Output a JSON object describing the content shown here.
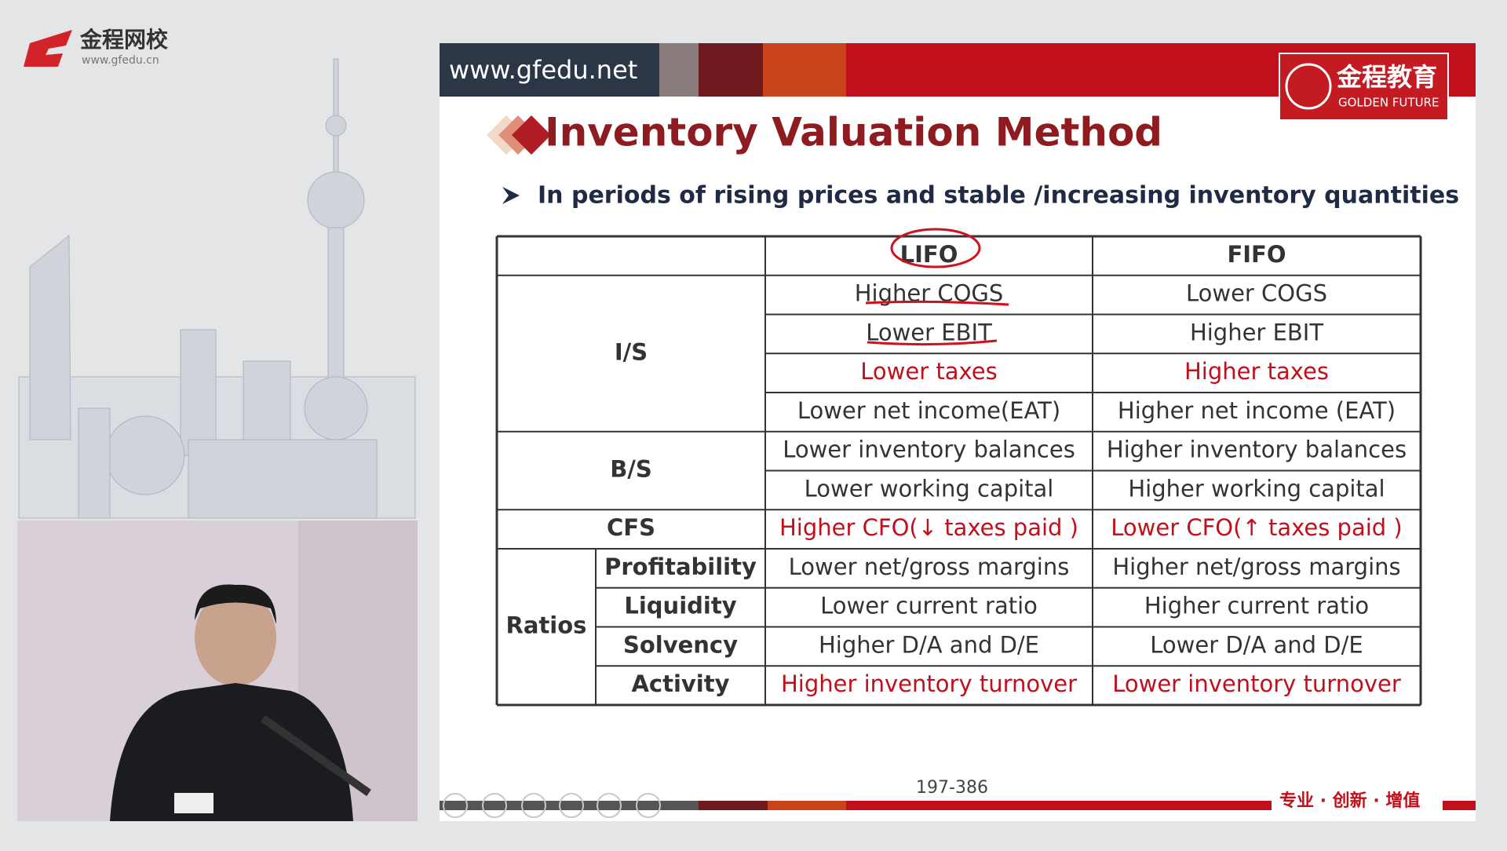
{
  "logo": {
    "name": "金程网校",
    "url": "www.gfedu.cn"
  },
  "slide": {
    "url": "www.gfedu.net",
    "brand": {
      "name": "金程教育",
      "english": "GOLDEN FUTURE"
    },
    "title": "Inventory Valuation Method",
    "bullet": "In periods of rising prices and stable /increasing inventory quantities",
    "table": {
      "header": [
        "LIFO",
        "FIFO"
      ],
      "groups": [
        {
          "label": "I/S",
          "rows": [
            {
              "cells": [
                "Higher COGS",
                "Lower COGS"
              ]
            },
            {
              "cells": [
                "Lower EBIT",
                "Higher EBIT"
              ]
            },
            {
              "cells": [
                "Lower taxes",
                "Higher taxes"
              ],
              "color": "#c0101c"
            },
            {
              "cells": [
                "Lower net income(EAT)",
                "Higher net income (EAT)"
              ]
            }
          ]
        },
        {
          "label": "B/S",
          "rows": [
            {
              "cells": [
                "Lower inventory balances",
                "Higher inventory balances"
              ]
            },
            {
              "cells": [
                "Lower working capital",
                "Higher working capital"
              ]
            }
          ]
        },
        {
          "label": "CFS",
          "rows": [
            {
              "cells": [
                "Higher CFO(↓ taxes paid )",
                "Lower CFO(↑ taxes paid )"
              ],
              "color": "#c0101c"
            }
          ]
        },
        {
          "label": "Ratios",
          "rows": [
            {
              "sub": "Profitability",
              "cells": [
                "Lower net/gross margins",
                "Higher net/gross margins"
              ]
            },
            {
              "sub": "Liquidity",
              "cells": [
                "Lower current ratio",
                "Higher current ratio"
              ]
            },
            {
              "sub": "Solvency",
              "cells": [
                "Higher D/A and D/E",
                "Lower D/A and D/E"
              ]
            },
            {
              "sub": "Activity",
              "cells": [
                "Higher inventory turnover",
                "Lower inventory turnover"
              ],
              "color": "#c0101c"
            }
          ]
        }
      ]
    },
    "page": "197-386",
    "slogan": "专业 · 创新 · 增值"
  }
}
